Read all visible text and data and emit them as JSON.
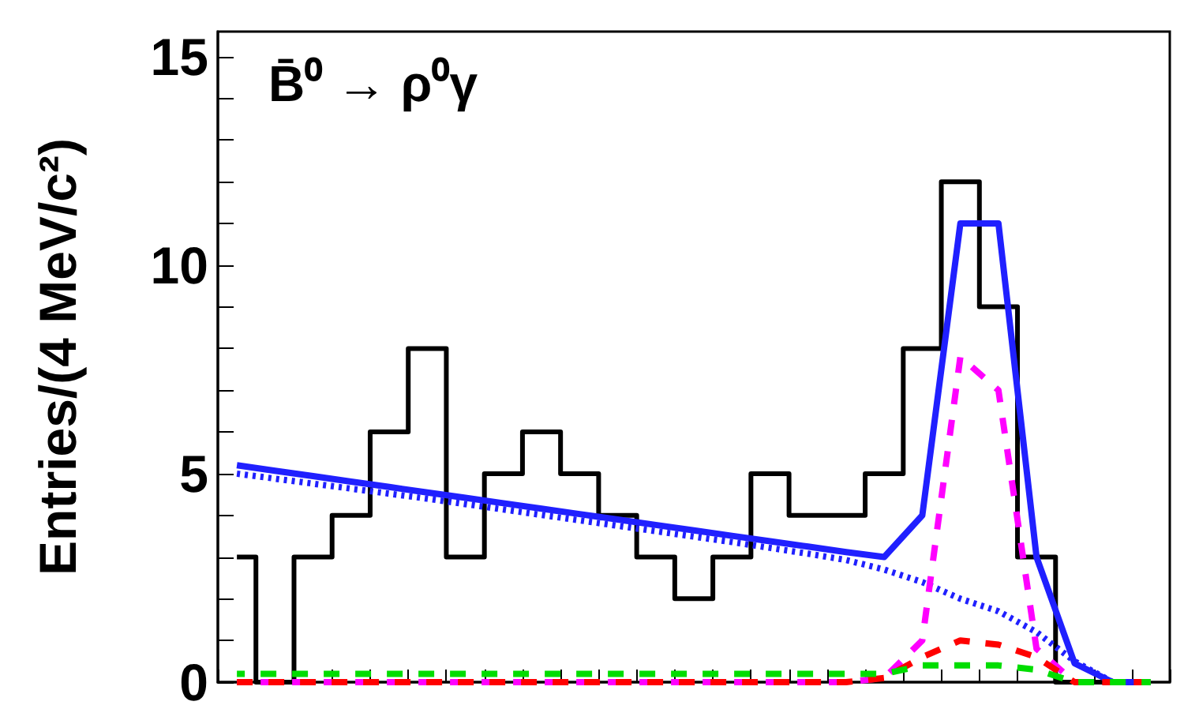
{
  "chart_data": {
    "type": "line",
    "title": "B̄⁰ → ρ⁰γ",
    "ylabel": "Entries/(4 MeV/c²)",
    "categories": [
      null,
      null,
      null,
      null,
      null,
      null,
      null,
      null,
      null,
      null,
      null,
      null,
      null,
      null,
      null,
      null,
      null,
      null,
      null,
      null,
      null,
      null,
      null,
      null,
      null
    ],
    "series": [
      {
        "type": "step",
        "color": "#000000",
        "line_style": "solid",
        "values": [
          3,
          0,
          3,
          4,
          6,
          8,
          3,
          5,
          6,
          5,
          4,
          3,
          2,
          3,
          5,
          4,
          4,
          5,
          8,
          12,
          9,
          3,
          0,
          0,
          0
        ]
      },
      {
        "color": "#2020ff",
        "line_style": "solid",
        "values": [
          5.2,
          5.07,
          4.94,
          4.81,
          4.68,
          4.55,
          4.42,
          4.29,
          4.16,
          4.03,
          3.9,
          3.77,
          3.64,
          3.51,
          3.38,
          3.25,
          3.12,
          3.0,
          4.0,
          11.0,
          11.0,
          3.0,
          0.45,
          0,
          0
        ]
      },
      {
        "color": "#2020ff",
        "line_style": "dotted",
        "values": [
          5.0,
          4.88,
          4.76,
          4.64,
          4.52,
          4.4,
          4.27,
          4.14,
          4.01,
          3.88,
          3.75,
          3.62,
          3.49,
          3.36,
          3.22,
          3.08,
          2.93,
          2.7,
          2.4,
          2.0,
          1.7,
          1.2,
          0.5,
          0,
          0
        ]
      },
      {
        "color": "#ff00ff",
        "line_style": "dashed",
        "values": [
          0,
          0,
          0,
          0,
          0,
          0,
          0,
          0,
          0,
          0,
          0,
          0,
          0,
          0,
          0,
          0,
          0,
          0.1,
          1.0,
          7.8,
          7.0,
          0.8,
          0,
          0,
          0
        ]
      },
      {
        "color": "#ff0000",
        "line_style": "dashed",
        "values": [
          0,
          0,
          0,
          0,
          0,
          0,
          0,
          0,
          0,
          0,
          0,
          0,
          0,
          0,
          0,
          0,
          0,
          0.1,
          0.6,
          1.0,
          0.9,
          0.6,
          0,
          0,
          0
        ]
      },
      {
        "color": "#00dd00",
        "line_style": "dashed",
        "values": [
          0.2,
          0.2,
          0.2,
          0.2,
          0.2,
          0.2,
          0.2,
          0.2,
          0.2,
          0.2,
          0.2,
          0.2,
          0.2,
          0.2,
          0.2,
          0.2,
          0.2,
          0.2,
          0.4,
          0.4,
          0.4,
          0.3,
          0,
          0,
          0
        ]
      }
    ],
    "ylim": [
      0,
      15.6
    ],
    "yticks": [
      0,
      {
        "value": 1,
        "label": null
      },
      {
        "value": 2,
        "label": null
      },
      {
        "value": 3,
        "label": null
      },
      {
        "value": 4,
        "label": null
      },
      5,
      {
        "value": 6,
        "label": null
      },
      {
        "value": 7,
        "label": null
      },
      {
        "value": 8,
        "label": null
      },
      {
        "value": 9,
        "label": null
      },
      10,
      {
        "value": 11,
        "label": null
      },
      {
        "value": 12,
        "label": null
      },
      {
        "value": 13,
        "label": null
      },
      {
        "value": 14,
        "label": null
      },
      15
    ],
    "tick_labels": "y",
    "grid": false,
    "marker": "none"
  }
}
